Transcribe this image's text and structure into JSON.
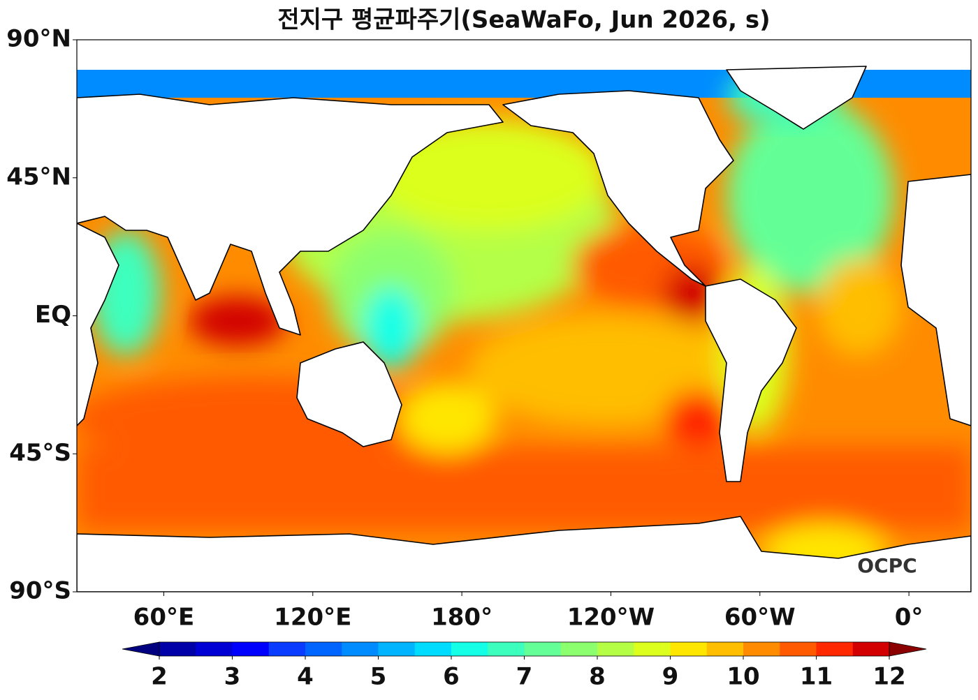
{
  "title": "전지구 평균파주기(SeaWaFo, Jun 2026, s)",
  "map": {
    "xlim": [
      25,
      385
    ],
    "ylim": [
      -90,
      90
    ],
    "lat_ticks": [
      {
        "value": 90,
        "label": "90°N"
      },
      {
        "value": 45,
        "label": "45°N"
      },
      {
        "value": 0,
        "label": "EQ"
      },
      {
        "value": -45,
        "label": "45°S"
      },
      {
        "value": -90,
        "label": "90°S"
      }
    ],
    "lon_ticks": [
      {
        "value": 60,
        "label": "60°E"
      },
      {
        "value": 120,
        "label": "120°E"
      },
      {
        "value": 180,
        "label": "180°"
      },
      {
        "value": 240,
        "label": "120°W"
      },
      {
        "value": 300,
        "label": "60°W"
      },
      {
        "value": 360,
        "label": "0°"
      }
    ]
  },
  "colorbar": {
    "clim": [
      2,
      12
    ],
    "ticks": [
      2,
      3,
      4,
      5,
      6,
      7,
      8,
      9,
      10,
      11,
      12
    ],
    "colors": [
      "#0000a8",
      "#0000d4",
      "#0000ff",
      "#0a3cff",
      "#0064ff",
      "#008cff",
      "#00b4ff",
      "#00dcff",
      "#14ffe6",
      "#3cffbe",
      "#64ff96",
      "#8cff6e",
      "#b4ff46",
      "#dcff1e",
      "#ffe600",
      "#ffbe00",
      "#ff8c00",
      "#ff5a00",
      "#ff2800",
      "#d20000"
    ],
    "under_color": "#000080",
    "over_color": "#8b0000"
  },
  "watermark": "OCPC"
}
